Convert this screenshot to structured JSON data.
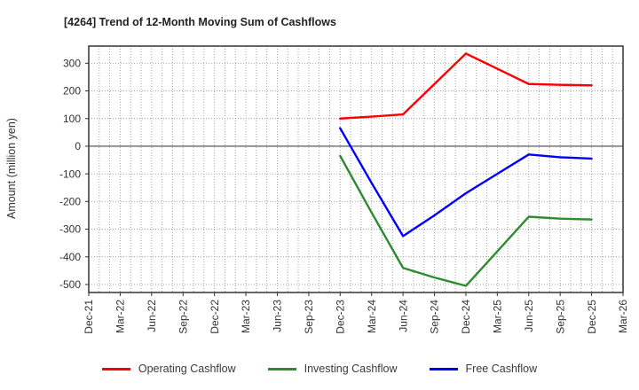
{
  "chart_data": {
    "type": "line",
    "title": "[4264]  Trend of 12-Month Moving Sum of Cashflows",
    "xlabel": "",
    "ylabel": "Amount (million yen)",
    "categories": [
      "Dec-21",
      "Mar-22",
      "Jun-22",
      "Sep-22",
      "Dec-22",
      "Mar-23",
      "Jun-23",
      "Sep-23",
      "Dec-23",
      "Mar-24",
      "Jun-24",
      "Sep-24",
      "Dec-24",
      "Mar-25",
      "Jun-25",
      "Sep-25",
      "Dec-25",
      "Mar-26"
    ],
    "xtick_rotation": 90,
    "yticks": [
      300,
      200,
      100,
      0,
      -100,
      -200,
      -300,
      -400,
      -500
    ],
    "ylim": [
      -529,
      362
    ],
    "grid": {
      "vertical": "monthly",
      "horizontal_step": 100,
      "style": "dotted",
      "zero_line": "solid-gray"
    },
    "legend_position": "bottom",
    "series": [
      {
        "name": "Operating Cashflow",
        "color": "#ff0000",
        "start_category": "Dec-23",
        "start_index": 8,
        "values": [
          100,
          107,
          115,
          225,
          335,
          280,
          225,
          222,
          220
        ]
      },
      {
        "name": "Investing Cashflow",
        "color": "#2e8b2e",
        "start_category": "Dec-23",
        "start_index": 8,
        "values": [
          -35,
          -240,
          -440,
          -475,
          -505,
          -380,
          -255,
          -262,
          -265
        ]
      },
      {
        "name": "Free Cashflow",
        "color": "#0000ff",
        "start_category": "Dec-23",
        "start_index": 8,
        "values": [
          65,
          -133,
          -325,
          -250,
          -170,
          -100,
          -30,
          -40,
          -45
        ]
      }
    ]
  },
  "style_colors": {
    "axis_border": "#404040",
    "grid_line": "#9a9a9a",
    "zero_line": "#808080",
    "tick_text": "#333333"
  }
}
